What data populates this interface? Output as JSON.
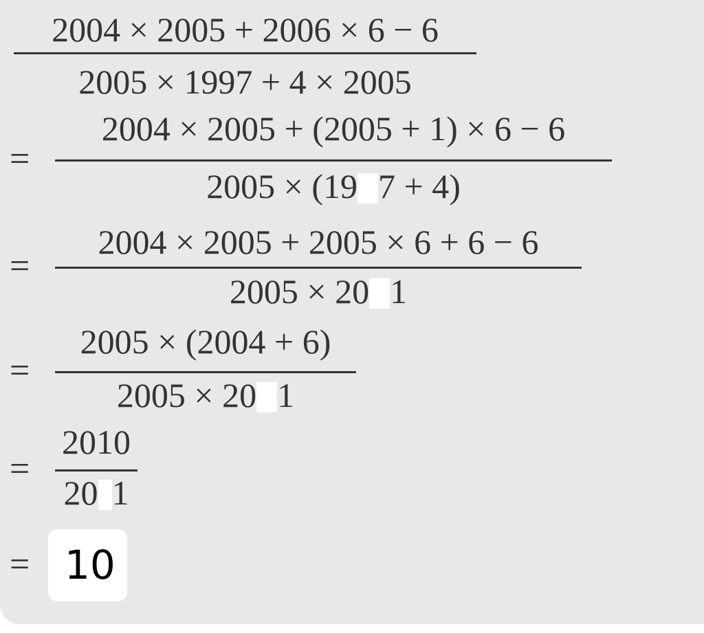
{
  "steps": [
    {
      "numerator": "2004 × 2005 + 2006 × 6 − 6",
      "denominator": "2005 × 1997 + 4 × 2005"
    },
    {
      "equals": "=",
      "numerator": "2004 × 2005 + (2005 + 1) × 6 − 6",
      "denominator_before": "2005 × (19",
      "denominator_after": "7 + 4)"
    },
    {
      "equals": "=",
      "numerator": "2004 × 2005 + 2005 × 6 + 6 − 6",
      "denominator_before": "2005 × 20",
      "denominator_after": "1"
    },
    {
      "equals": "=",
      "numerator": "2005 × (2004 + 6)",
      "denominator_before": "2005 × 20",
      "denominator_after": "1"
    },
    {
      "equals": "=",
      "numerator": "2010",
      "denominator_before": "20",
      "denominator_after": "1"
    },
    {
      "equals": "=",
      "result": "10"
    }
  ]
}
